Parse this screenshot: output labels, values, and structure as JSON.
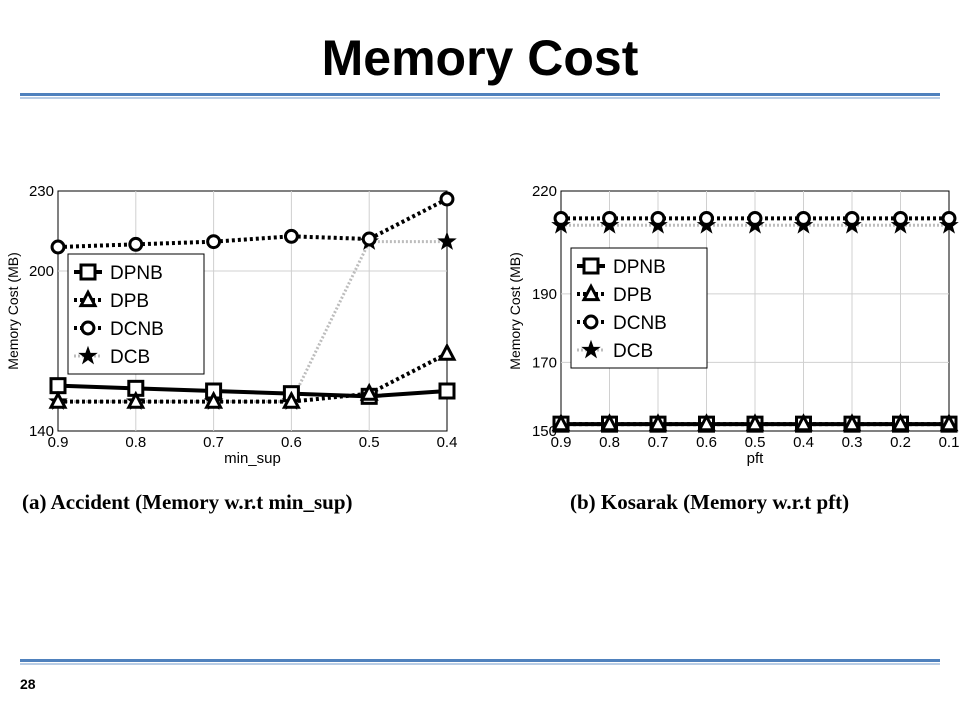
{
  "slide": {
    "title": "Memory Cost",
    "page_number": "28",
    "colors": {
      "accent_rule": "#4f81bd",
      "accent_rule_light": "#b9cde5"
    }
  },
  "chart_data": [
    {
      "type": "line",
      "caption": "(a) Accident (Memory w.r.t min_sup)",
      "xlabel": "min_sup",
      "ylabel": "Memory Cost (MB)",
      "x": [
        "0.9",
        "0.8",
        "0.7",
        "0.6",
        "0.5",
        "0.4"
      ],
      "yticks": [
        140,
        200,
        230
      ],
      "ylim": [
        140,
        230
      ],
      "legend_position": "left-middle",
      "series": [
        {
          "name": "DPNB",
          "marker": "square",
          "dash": "solid",
          "values": [
            157,
            156,
            155,
            154,
            153,
            155
          ]
        },
        {
          "name": "DPB",
          "marker": "triangle",
          "dash": "dotted",
          "values": [
            151,
            151,
            151,
            151,
            154,
            169
          ]
        },
        {
          "name": "DCNB",
          "marker": "circle",
          "dash": "dotted",
          "values": [
            209,
            210,
            211,
            213,
            212,
            227
          ]
        },
        {
          "name": "DCB",
          "marker": "star",
          "dash": "gray",
          "values": [
            151,
            151,
            151,
            151,
            211,
            211
          ]
        }
      ]
    },
    {
      "type": "line",
      "caption": "(b) Kosarak (Memory w.r.t pft)",
      "xlabel": "pft",
      "ylabel": "Memory Cost (MB)",
      "x": [
        "0.9",
        "0.8",
        "0.7",
        "0.6",
        "0.5",
        "0.4",
        "0.3",
        "0.2",
        "0.1"
      ],
      "yticks": [
        150,
        170,
        190,
        220
      ],
      "ylim": [
        150,
        220
      ],
      "legend_position": "left-middle",
      "series": [
        {
          "name": "DPNB",
          "marker": "square",
          "dash": "solid",
          "values": [
            152,
            152,
            152,
            152,
            152,
            152,
            152,
            152,
            152
          ]
        },
        {
          "name": "DPB",
          "marker": "triangle",
          "dash": "dotted",
          "values": [
            152,
            152,
            152,
            152,
            152,
            152,
            152,
            152,
            152
          ]
        },
        {
          "name": "DCNB",
          "marker": "circle",
          "dash": "dotted",
          "values": [
            212,
            212,
            212,
            212,
            212,
            212,
            212,
            212,
            212
          ]
        },
        {
          "name": "DCB",
          "marker": "star",
          "dash": "gray",
          "values": [
            210,
            210,
            210,
            210,
            210,
            210,
            210,
            210,
            210
          ]
        }
      ]
    }
  ]
}
